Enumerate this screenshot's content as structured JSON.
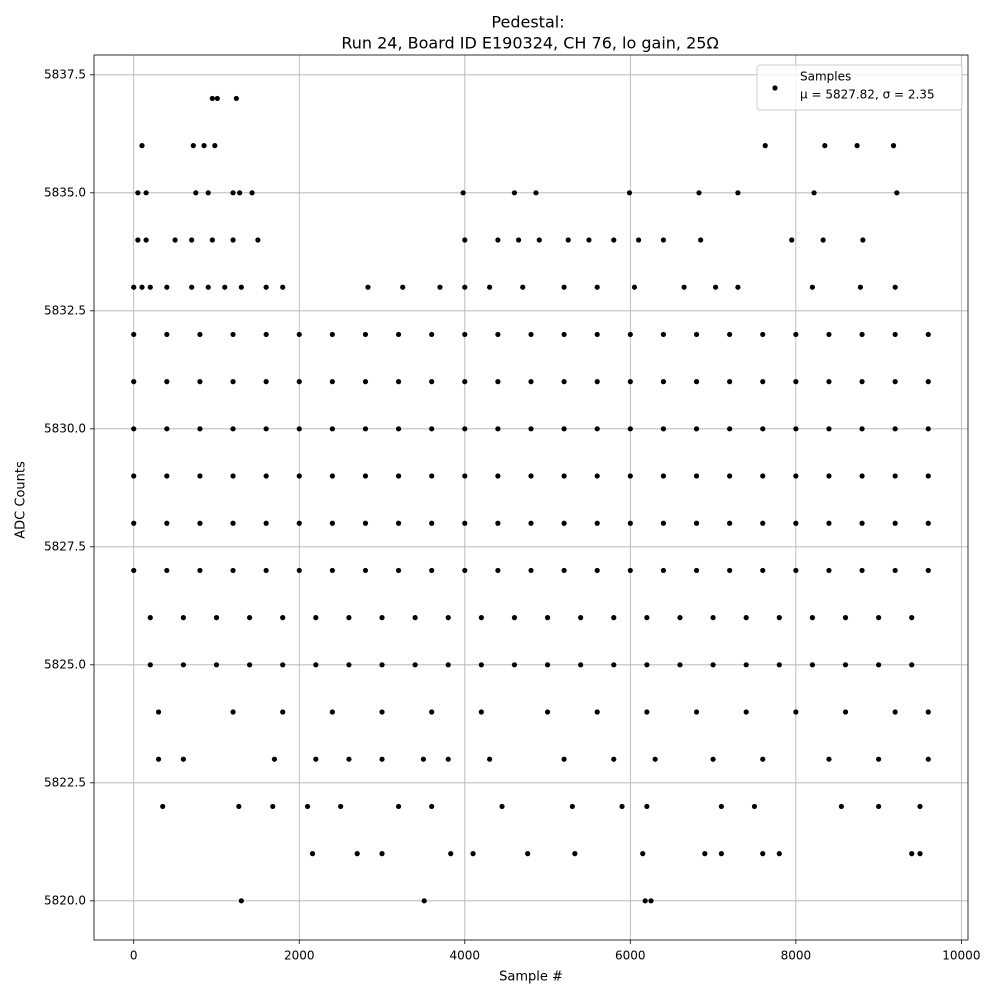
{
  "chart_data": {
    "type": "scatter",
    "title": "Pedestal:",
    "subtitle": "Run 24, Board ID E190324, CH 76, lo gain, 25Ω",
    "xlabel": "Sample #",
    "ylabel": "ADC Counts",
    "legend_note": "μ = 5827.82, σ = 2.35",
    "legend": "upper right",
    "grid": true,
    "xlim": [
      -480,
      10080
    ],
    "ylim": [
      5819.17,
      5837.92
    ],
    "xticks": [
      0,
      2000,
      4000,
      6000,
      8000,
      10000
    ],
    "yticks": [
      {
        "value": 5820,
        "label": "5820.0"
      },
      5822.5,
      {
        "value": 5825,
        "label": "5825.0"
      },
      5827.5,
      {
        "value": 5830,
        "label": "5830.0"
      },
      5832.5,
      {
        "value": 5835,
        "label": "5835.0"
      },
      5837.5
    ],
    "series": [
      {
        "name": "Samples",
        "color": "#000000",
        "x": [
          0,
          400,
          800,
          1200,
          1600,
          2000,
          2400,
          2800,
          3200,
          3600,
          4000,
          4400,
          4800,
          5200,
          5600,
          6000,
          6400,
          6800,
          7200,
          7600,
          8000,
          8400,
          8800,
          9200,
          9600,
          0,
          400,
          800,
          1200,
          1600,
          2000,
          2400,
          2800,
          3200,
          3600,
          4000,
          4400,
          4800,
          5200,
          5600,
          6000,
          6400,
          6800,
          7200,
          7600,
          8000,
          8400,
          8800,
          9200,
          9600,
          0,
          400,
          800,
          1200,
          1600,
          2000,
          2400,
          2800,
          3200,
          3600,
          4000,
          4400,
          4800,
          5200,
          5600,
          6000,
          6400,
          6800,
          7200,
          7600,
          8000,
          8400,
          8800,
          9200,
          9600,
          0,
          400,
          800,
          1200,
          1600,
          2000,
          2400,
          2800,
          3200,
          3600,
          4000,
          4400,
          4800,
          5200,
          5600,
          6000,
          6400,
          6800,
          7200,
          7600,
          8000,
          8400,
          8800,
          9200,
          9600,
          0,
          400,
          800,
          1200,
          1600,
          2000,
          2400,
          2800,
          3200,
          3600,
          4000,
          4400,
          4800,
          5200,
          5600,
          6000,
          6400,
          6800,
          7200,
          7600,
          8000,
          8400,
          8800,
          9200,
          9600,
          0,
          400,
          800,
          1200,
          1600,
          2000,
          2400,
          2800,
          3200,
          3600,
          4000,
          4400,
          4800,
          5200,
          5600,
          6000,
          6400,
          6800,
          7200,
          7600,
          8000,
          8400,
          8800,
          9200,
          9600,
          200,
          600,
          1000,
          1400,
          1800,
          2200,
          2600,
          3000,
          3400,
          3800,
          4200,
          4600,
          5000,
          5400,
          5800,
          6200,
          6600,
          7000,
          7400,
          7800,
          8200,
          8600,
          9000,
          9400,
          200,
          600,
          1000,
          1400,
          1800,
          2200,
          2600,
          3000,
          3400,
          3800,
          4200,
          4600,
          5000,
          5400,
          5800,
          6200,
          6600,
          7000,
          7400,
          7800,
          8200,
          8600,
          9000,
          9400,
          300,
          1200,
          1800,
          2400,
          3000,
          3600,
          4200,
          5000,
          5600,
          6200,
          6800,
          7400,
          8000,
          8600,
          9200,
          9600,
          300,
          600,
          1700,
          2200,
          2600,
          3000,
          3500,
          3800,
          4300,
          5200,
          5800,
          6300,
          7000,
          7600,
          8400,
          9000,
          9600,
          350,
          1270,
          1680,
          2100,
          2500,
          3200,
          3600,
          4450,
          5300,
          5900,
          6200,
          7100,
          7500,
          8550,
          9000,
          9500,
          2160,
          2700,
          3000,
          3830,
          4100,
          4760,
          5330,
          6150,
          6900,
          7100,
          7600,
          7800,
          9400,
          9500,
          1300,
          3510,
          6180,
          6250,
          0,
          100,
          200,
          400,
          700,
          900,
          1100,
          1300,
          1600,
          1800,
          2830,
          3250,
          3700,
          4000,
          4300,
          4700,
          5200,
          5600,
          6050,
          6650,
          7030,
          7300,
          8200,
          8780,
          9200,
          50,
          150,
          500,
          700,
          950,
          1200,
          1500,
          4000,
          4400,
          4650,
          4900,
          5250,
          5500,
          5800,
          6100,
          6400,
          6850,
          7950,
          8330,
          8810,
          50,
          150,
          750,
          900,
          1200,
          1280,
          1430,
          3980,
          4600,
          4860,
          5990,
          6830,
          7300,
          8220,
          9220,
          100,
          720,
          850,
          980,
          7630,
          8350,
          8740,
          9180,
          950,
          1010,
          1240
        ],
        "values": [
          5827,
          5827,
          5827,
          5827,
          5827,
          5827,
          5827,
          5827,
          5827,
          5827,
          5827,
          5827,
          5827,
          5827,
          5827,
          5827,
          5827,
          5827,
          5827,
          5827,
          5827,
          5827,
          5827,
          5827,
          5827,
          5828,
          5828,
          5828,
          5828,
          5828,
          5828,
          5828,
          5828,
          5828,
          5828,
          5828,
          5828,
          5828,
          5828,
          5828,
          5828,
          5828,
          5828,
          5828,
          5828,
          5828,
          5828,
          5828,
          5828,
          5828,
          5829,
          5829,
          5829,
          5829,
          5829,
          5829,
          5829,
          5829,
          5829,
          5829,
          5829,
          5829,
          5829,
          5829,
          5829,
          5829,
          5829,
          5829,
          5829,
          5829,
          5829,
          5829,
          5829,
          5829,
          5829,
          5830,
          5830,
          5830,
          5830,
          5830,
          5830,
          5830,
          5830,
          5830,
          5830,
          5830,
          5830,
          5830,
          5830,
          5830,
          5830,
          5830,
          5830,
          5830,
          5830,
          5830,
          5830,
          5830,
          5830,
          5830,
          5831,
          5831,
          5831,
          5831,
          5831,
          5831,
          5831,
          5831,
          5831,
          5831,
          5831,
          5831,
          5831,
          5831,
          5831,
          5831,
          5831,
          5831,
          5831,
          5831,
          5831,
          5831,
          5831,
          5831,
          5831,
          5832,
          5832,
          5832,
          5832,
          5832,
          5832,
          5832,
          5832,
          5832,
          5832,
          5832,
          5832,
          5832,
          5832,
          5832,
          5832,
          5832,
          5832,
          5832,
          5832,
          5832,
          5832,
          5832,
          5832,
          5832,
          5826,
          5826,
          5826,
          5826,
          5826,
          5826,
          5826,
          5826,
          5826,
          5826,
          5826,
          5826,
          5826,
          5826,
          5826,
          5826,
          5826,
          5826,
          5826,
          5826,
          5826,
          5826,
          5826,
          5826,
          5825,
          5825,
          5825,
          5825,
          5825,
          5825,
          5825,
          5825,
          5825,
          5825,
          5825,
          5825,
          5825,
          5825,
          5825,
          5825,
          5825,
          5825,
          5825,
          5825,
          5825,
          5825,
          5825,
          5825,
          5824,
          5824,
          5824,
          5824,
          5824,
          5824,
          5824,
          5824,
          5824,
          5824,
          5824,
          5824,
          5824,
          5824,
          5824,
          5824,
          5823,
          5823,
          5823,
          5823,
          5823,
          5823,
          5823,
          5823,
          5823,
          5823,
          5823,
          5823,
          5823,
          5823,
          5823,
          5823,
          5823,
          5822,
          5822,
          5822,
          5822,
          5822,
          5822,
          5822,
          5822,
          5822,
          5822,
          5822,
          5822,
          5822,
          5822,
          5822,
          5822,
          5821,
          5821,
          5821,
          5821,
          5821,
          5821,
          5821,
          5821,
          5821,
          5821,
          5821,
          5821,
          5821,
          5821,
          5820,
          5820,
          5820,
          5820,
          5833,
          5833,
          5833,
          5833,
          5833,
          5833,
          5833,
          5833,
          5833,
          5833,
          5833,
          5833,
          5833,
          5833,
          5833,
          5833,
          5833,
          5833,
          5833,
          5833,
          5833,
          5833,
          5833,
          5833,
          5833,
          5834,
          5834,
          5834,
          5834,
          5834,
          5834,
          5834,
          5834,
          5834,
          5834,
          5834,
          5834,
          5834,
          5834,
          5834,
          5834,
          5834,
          5834,
          5834,
          5834,
          5835,
          5835,
          5835,
          5835,
          5835,
          5835,
          5835,
          5835,
          5835,
          5835,
          5835,
          5835,
          5835,
          5835,
          5835,
          5836,
          5836,
          5836,
          5836,
          5836,
          5836,
          5836,
          5836,
          5837,
          5837,
          5837
        ]
      }
    ]
  }
}
